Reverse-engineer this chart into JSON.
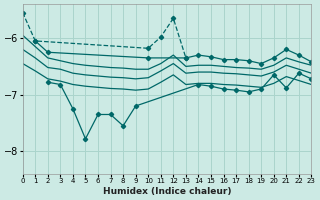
{
  "xlabel": "Humidex (Indice chaleur)",
  "background_color": "#cceae4",
  "grid_color": "#aad4cc",
  "line_color": "#006868",
  "xlim": [
    0,
    23
  ],
  "ylim": [
    -8.4,
    -5.4
  ],
  "yticks": [
    -8,
    -7,
    -6
  ],
  "xticks": [
    0,
    1,
    2,
    3,
    4,
    5,
    6,
    7,
    8,
    9,
    10,
    11,
    12,
    13,
    14,
    15,
    16,
    17,
    18,
    19,
    20,
    21,
    22,
    23
  ],
  "line1_dashed": {
    "x": [
      0,
      1,
      10,
      11,
      12,
      13
    ],
    "y": [
      -5.55,
      -6.05,
      -6.18,
      -5.98,
      -5.65,
      -6.35
    ]
  },
  "line2_top_marker": {
    "x": [
      1,
      2,
      10,
      13,
      14,
      15,
      16,
      17,
      18,
      19,
      20,
      21,
      22,
      23
    ],
    "y": [
      -6.05,
      -6.25,
      -6.35,
      -6.35,
      -6.3,
      -6.33,
      -6.38,
      -6.38,
      -6.4,
      -6.45,
      -6.35,
      -6.2,
      -6.3,
      -6.42
    ]
  },
  "line3_solid_upper": {
    "x": [
      0,
      1,
      2,
      3,
      4,
      5,
      6,
      7,
      8,
      9,
      10,
      11,
      12,
      13,
      14,
      15,
      16,
      17,
      18,
      19,
      20,
      21,
      22,
      23
    ],
    "y": [
      -5.95,
      -6.15,
      -6.35,
      -6.4,
      -6.45,
      -6.48,
      -6.5,
      -6.52,
      -6.53,
      -6.55,
      -6.55,
      -6.45,
      -6.3,
      -6.5,
      -6.48,
      -6.48,
      -6.5,
      -6.52,
      -6.53,
      -6.55,
      -6.48,
      -6.35,
      -6.42,
      -6.48
    ]
  },
  "line4_solid_mid": {
    "x": [
      0,
      1,
      2,
      3,
      4,
      5,
      6,
      7,
      8,
      9,
      10,
      11,
      12,
      13,
      14,
      15,
      16,
      17,
      18,
      19,
      20,
      21,
      22,
      23
    ],
    "y": [
      -6.2,
      -6.35,
      -6.52,
      -6.55,
      -6.62,
      -6.65,
      -6.67,
      -6.69,
      -6.7,
      -6.72,
      -6.7,
      -6.58,
      -6.45,
      -6.62,
      -6.6,
      -6.6,
      -6.62,
      -6.63,
      -6.65,
      -6.67,
      -6.6,
      -6.48,
      -6.55,
      -6.62
    ]
  },
  "line5_solid_low": {
    "x": [
      0,
      1,
      2,
      3,
      4,
      5,
      6,
      7,
      8,
      9,
      10,
      11,
      12,
      13,
      14,
      15,
      16,
      17,
      18,
      19,
      20,
      21,
      22,
      23
    ],
    "y": [
      -6.45,
      -6.58,
      -6.72,
      -6.76,
      -6.82,
      -6.85,
      -6.87,
      -6.89,
      -6.9,
      -6.92,
      -6.9,
      -6.78,
      -6.65,
      -6.82,
      -6.8,
      -6.8,
      -6.82,
      -6.83,
      -6.85,
      -6.87,
      -6.8,
      -6.68,
      -6.75,
      -6.82
    ]
  },
  "line6_bottom_marker": {
    "x": [
      2,
      3,
      4,
      5,
      6,
      7,
      8,
      9,
      14,
      15,
      16,
      17,
      18,
      19,
      20,
      21,
      22,
      23
    ],
    "y": [
      -6.78,
      -6.82,
      -7.25,
      -7.78,
      -7.35,
      -7.35,
      -7.55,
      -7.2,
      -6.82,
      -6.85,
      -6.9,
      -6.92,
      -6.95,
      -6.9,
      -6.65,
      -6.88,
      -6.62,
      -6.72
    ]
  }
}
